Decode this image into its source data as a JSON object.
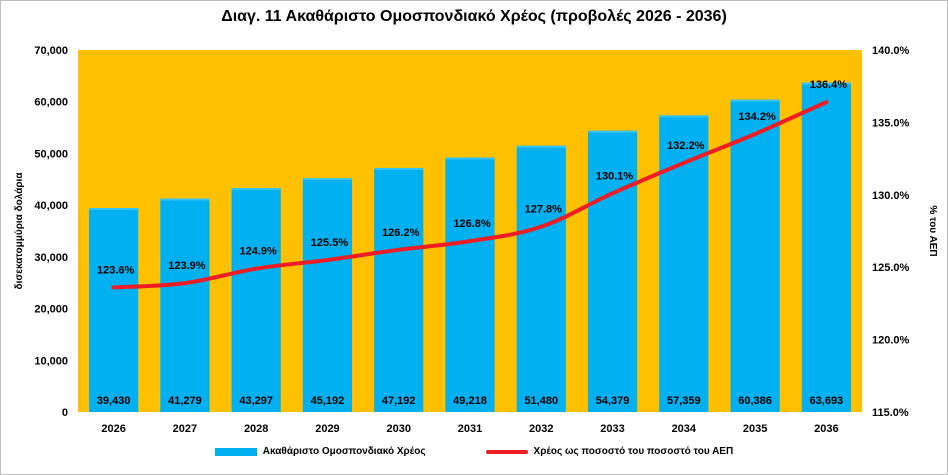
{
  "chart_data": {
    "type": "bar",
    "title": "Διαγ. 11  Ακαθάριστο Ομοσπονδιακό Χρέος (προβολές 2026 - 2036)",
    "categories": [
      "2026",
      "2027",
      "2028",
      "2029",
      "2030",
      "2031",
      "2032",
      "2033",
      "2034",
      "2035",
      "2036"
    ],
    "series": [
      {
        "name": "Ακαθάριστο Ομοσπονδιακό Χρέος",
        "type": "bar",
        "axis": "left",
        "color": "#00b0f0",
        "values": [
          39430,
          41279,
          43297,
          45192,
          47192,
          49218,
          51480,
          54379,
          57359,
          60386,
          63693
        ],
        "labels": [
          "39,430",
          "41,279",
          "43,297",
          "45,192",
          "47,192",
          "49,218",
          "51,480",
          "54,379",
          "57,359",
          "60,386",
          "63,693"
        ]
      },
      {
        "name": "Χρέος ως ποσοστό του ποσοστό του ΑΕΠ",
        "type": "line",
        "axis": "right",
        "color": "#ee1c25",
        "values": [
          123.6,
          123.9,
          124.9,
          125.5,
          126.2,
          126.8,
          127.8,
          130.1,
          132.2,
          134.2,
          136.4
        ],
        "labels": [
          "123.6%",
          "123.9%",
          "124.9%",
          "125.5%",
          "126.2%",
          "126.8%",
          "127.8%",
          "130.1%",
          "132.2%",
          "134.2%",
          "136.4%"
        ]
      }
    ],
    "ylabel": "δισεκατομμύρια δολάρια",
    "y2label": "% του ΑΕΠ",
    "ylim": [
      0,
      70000
    ],
    "y2lim": [
      115,
      140
    ],
    "yticks": [
      "0",
      "10,000",
      "20,000",
      "30,000",
      "40,000",
      "50,000",
      "60,000",
      "70,000"
    ],
    "y2ticks": [
      "115.0%",
      "120.0%",
      "125.0%",
      "130.0%",
      "135.0%",
      "140.0%"
    ],
    "plot_background": "#ffc000",
    "grid": false,
    "legend_position": "bottom"
  }
}
